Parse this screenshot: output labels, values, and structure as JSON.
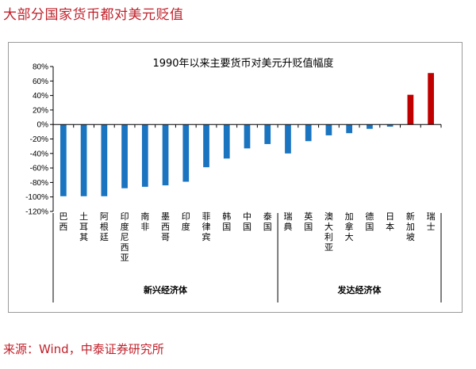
{
  "heading": "大部分国家货币都对美元贬值",
  "source": "来源：Wind，中泰证券研究所",
  "colors": {
    "negative": "#1a74bf",
    "positive": "#c00000",
    "text_red": "#c0202a"
  },
  "chart_data": {
    "type": "bar",
    "title": "1990年以来主要货币对美元升贬值幅度",
    "categories": [
      "巴西",
      "土耳其",
      "阿根廷",
      "印度尼西亚",
      "南非",
      "墨西哥",
      "印度",
      "菲律宾",
      "韩国",
      "中国",
      "泰国",
      "瑞典",
      "英国",
      "澳大利亚",
      "加拿大",
      "德国",
      "日本",
      "新加坡",
      "瑞士"
    ],
    "values": [
      -99,
      -99,
      -99,
      -88,
      -86,
      -84,
      -79,
      -59,
      -47,
      -33,
      -27,
      -40,
      -23,
      -15,
      -12,
      -6,
      -3,
      41,
      71
    ],
    "ylim": [
      -120,
      80
    ],
    "yticks": [
      "80%",
      "60%",
      "40%",
      "20%",
      "0%",
      "-20%",
      "-40%",
      "-60%",
      "-80%",
      "-100%",
      "-120%"
    ],
    "groups": [
      {
        "label": "新兴经济体",
        "count": 11
      },
      {
        "label": "发达经济体",
        "count": 8
      }
    ]
  }
}
